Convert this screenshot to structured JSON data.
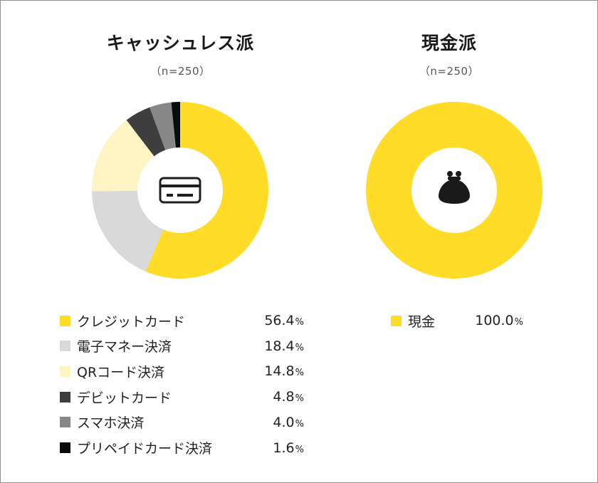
{
  "chart_data": [
    {
      "type": "pie",
      "title": "キャッシュレス派",
      "subtitle": "（n=250）",
      "center_icon": "credit-card-icon",
      "slices": [
        {
          "label": "クレジットカード",
          "value": 56.4,
          "color": "#FFDC27"
        },
        {
          "label": "電子マネー決済",
          "value": 18.4,
          "color": "#D9D9D9"
        },
        {
          "label": "QRコード決済",
          "value": 14.8,
          "color": "#FFF4C4"
        },
        {
          "label": "デビットカード",
          "value": 4.8,
          "color": "#3E3E3E"
        },
        {
          "label": "スマホ決済",
          "value": 4.0,
          "color": "#878787"
        },
        {
          "label": "プリペイドカード決済",
          "value": 1.6,
          "color": "#0A0A0A"
        }
      ],
      "value_format": {
        "decimals": 1,
        "unit": "%"
      }
    },
    {
      "type": "pie",
      "title": "現金派",
      "subtitle": "（n=250）",
      "center_icon": "coin-purse-icon",
      "slices": [
        {
          "label": "現金",
          "value": 100.0,
          "color": "#FFDC27"
        }
      ],
      "value_format": {
        "decimals": 1,
        "unit": "%"
      }
    }
  ]
}
